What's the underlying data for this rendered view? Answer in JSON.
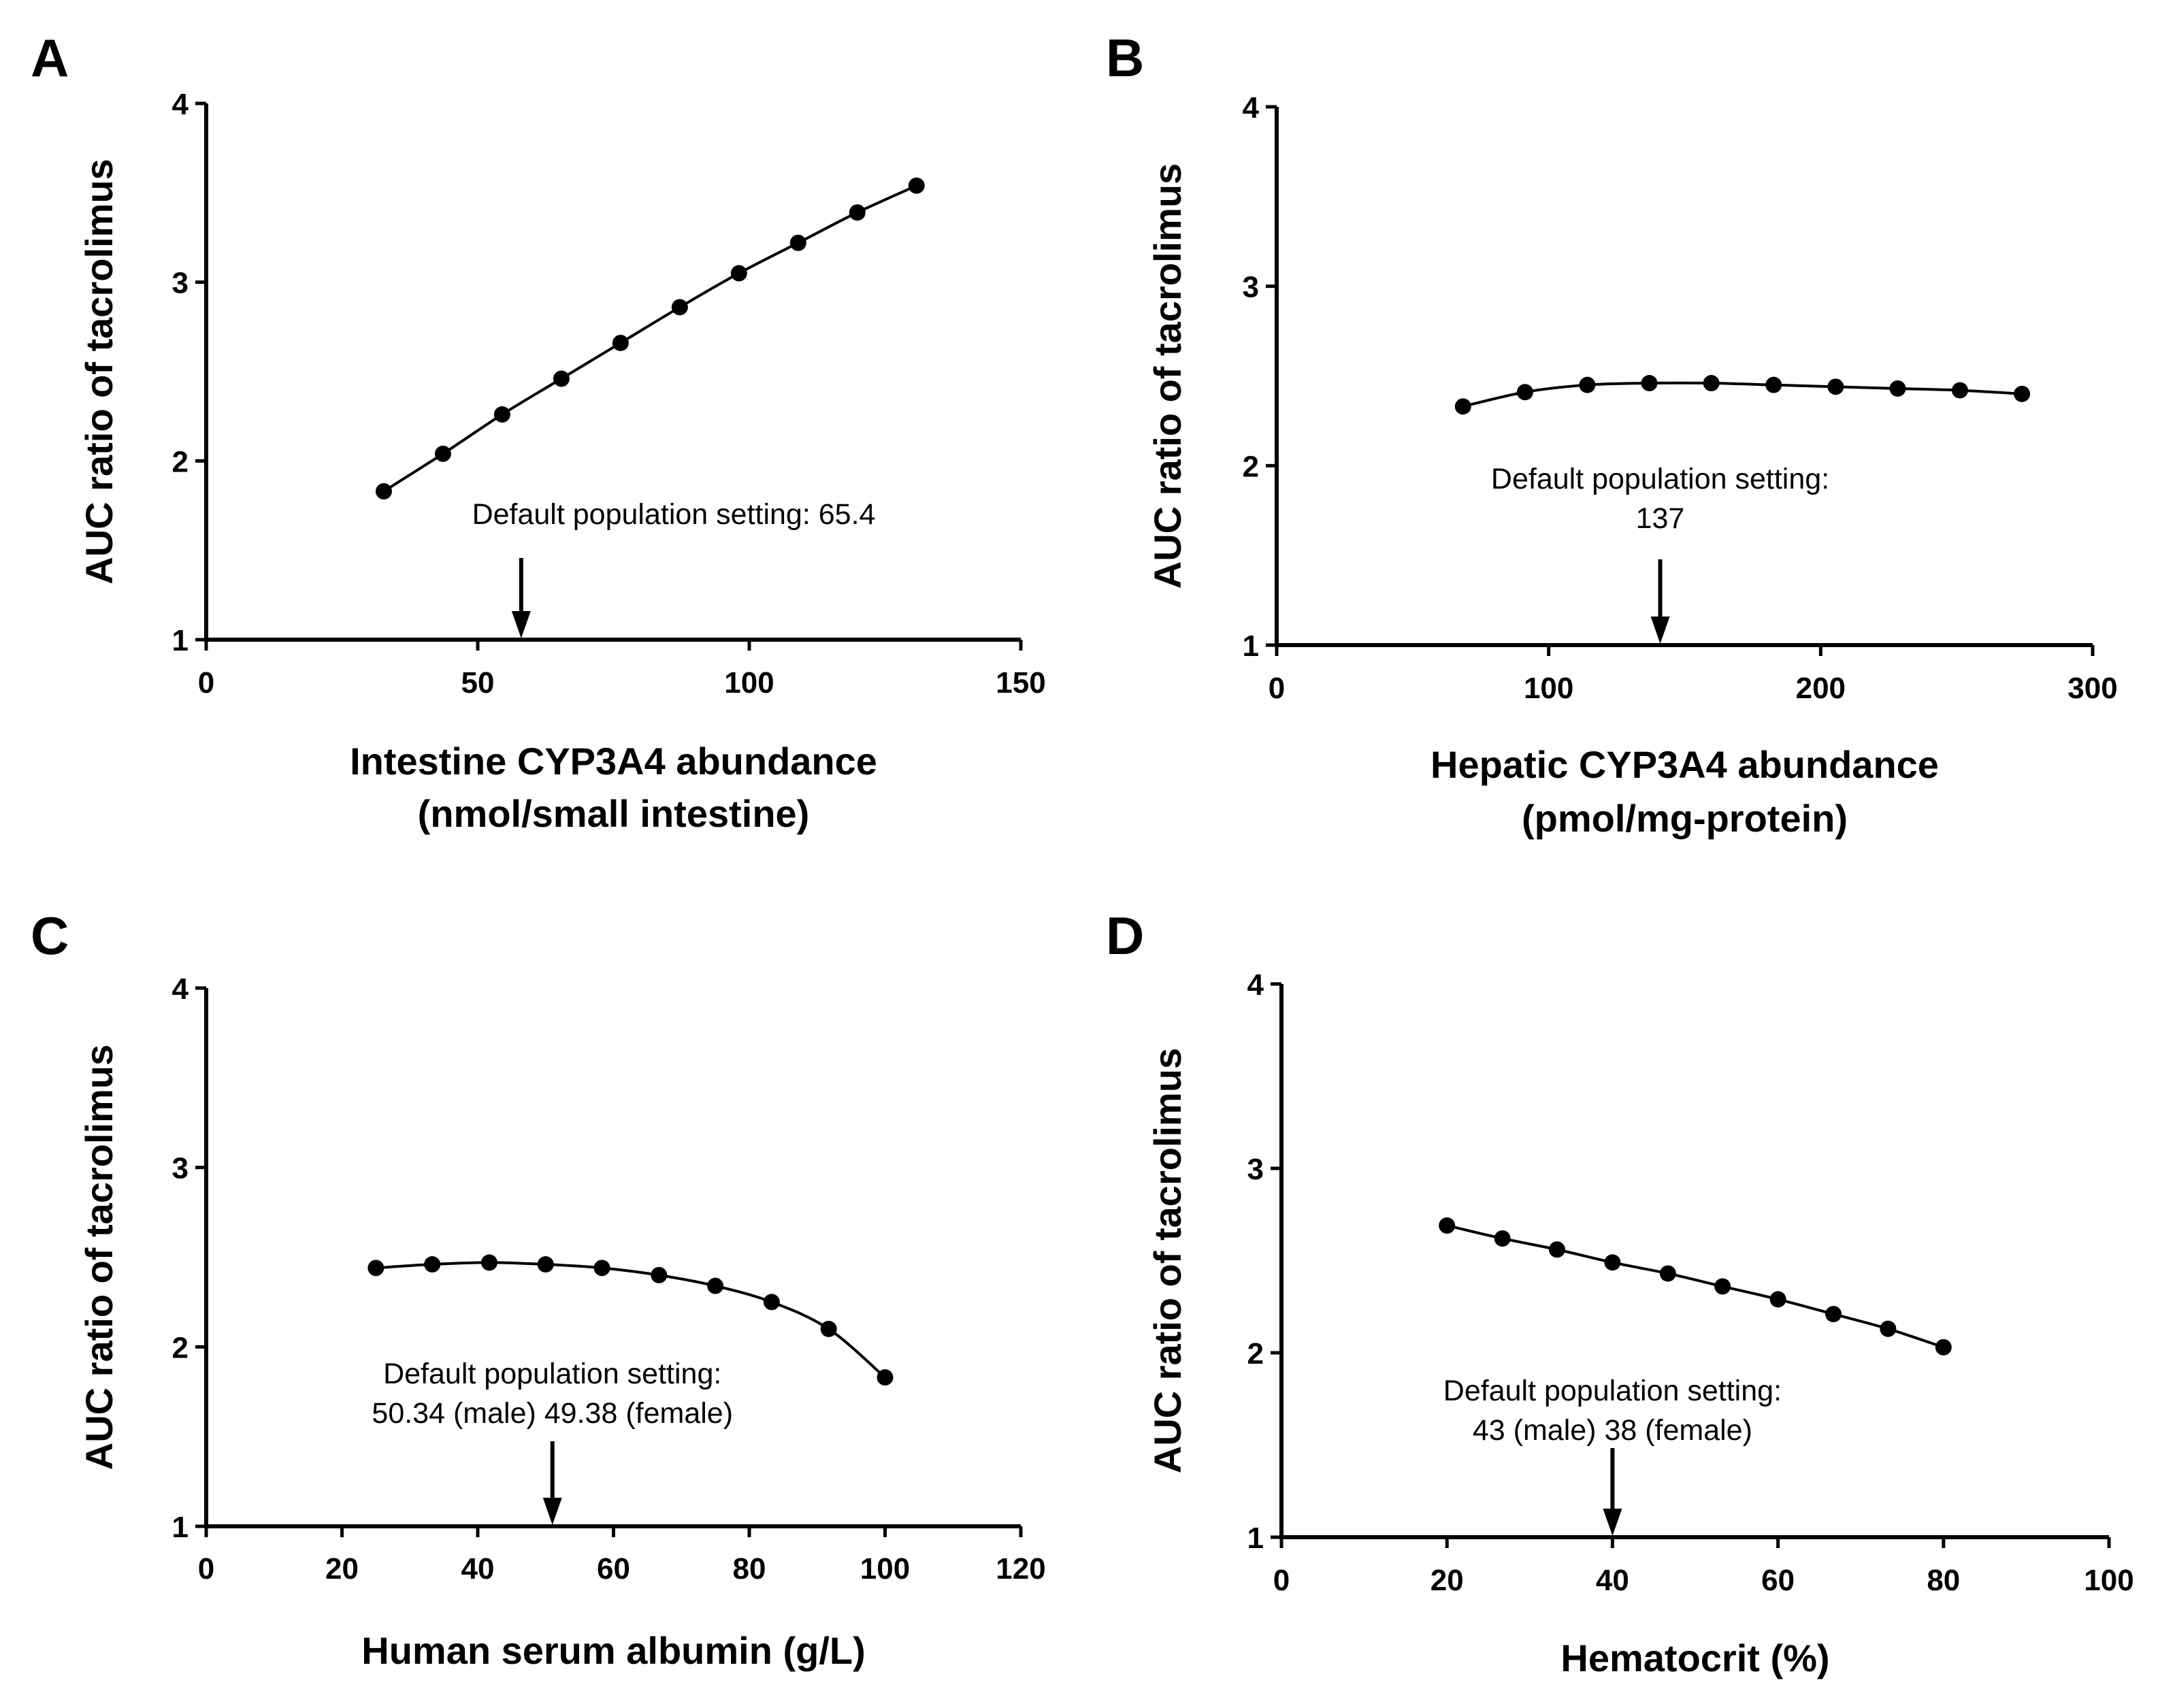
{
  "chart_data": [
    {
      "panel": "A",
      "type": "line",
      "xlabel": [
        "Intestine CYP3A4 abundance",
        "(nmol/small intestine)"
      ],
      "ylabel": "AUC ratio of tacrolimus",
      "xlim": [
        0,
        150
      ],
      "ylim": [
        1,
        4
      ],
      "xticks": [
        0,
        50,
        100,
        150
      ],
      "yticks": [
        1,
        2,
        3,
        4
      ],
      "x": [
        32.7,
        43.6,
        54.5,
        65.4,
        76.3,
        87.2,
        98.1,
        109.0,
        119.9,
        130.8
      ],
      "y": [
        1.83,
        2.04,
        2.26,
        2.46,
        2.66,
        2.86,
        3.05,
        3.22,
        3.39,
        3.54
      ],
      "annotation": {
        "lines": [
          "Default population setting: 65.4"
        ],
        "arrow_x": 58
      }
    },
    {
      "panel": "B",
      "type": "line",
      "xlabel": [
        "Hepatic CYP3A4 abundance",
        "(pmol/mg-protein)"
      ],
      "ylabel": "AUC ratio of tacrolimus",
      "xlim": [
        0,
        300
      ],
      "ylim": [
        1,
        4
      ],
      "xticks": [
        0,
        100,
        200,
        300
      ],
      "yticks": [
        1,
        2,
        3,
        4
      ],
      "x": [
        68.5,
        91.3,
        114.2,
        137.0,
        159.8,
        182.7,
        205.5,
        228.3,
        251.2,
        274.0
      ],
      "y": [
        2.33,
        2.41,
        2.45,
        2.46,
        2.46,
        2.45,
        2.44,
        2.43,
        2.42,
        2.4
      ],
      "annotation": {
        "lines": [
          "Default population setting:",
          "137"
        ],
        "arrow_x": 141
      }
    },
    {
      "panel": "C",
      "type": "line",
      "xlabel": [
        "Human serum albumin (g/L)"
      ],
      "ylabel": "AUC ratio of tacrolimus",
      "xlim": [
        0,
        120
      ],
      "ylim": [
        1,
        4
      ],
      "xticks": [
        0,
        20,
        40,
        60,
        80,
        100,
        120
      ],
      "yticks": [
        1,
        2,
        3,
        4
      ],
      "x": [
        25,
        33.3,
        41.7,
        50,
        58.3,
        66.7,
        75,
        83.3,
        91.7,
        100
      ],
      "y": [
        2.44,
        2.46,
        2.47,
        2.46,
        2.44,
        2.4,
        2.34,
        2.25,
        2.1,
        1.83
      ],
      "annotation": {
        "lines": [
          "Default population setting:",
          "50.34 (male) 49.38 (female)"
        ],
        "arrow_x": 51
      }
    },
    {
      "panel": "D",
      "type": "line",
      "xlabel": [
        "Hematocrit (%)"
      ],
      "ylabel": "AUC ratio of tacrolimus",
      "xlim": [
        0,
        100
      ],
      "ylim": [
        1,
        4
      ],
      "xticks": [
        0,
        20,
        40,
        60,
        80,
        100
      ],
      "yticks": [
        1,
        2,
        3,
        4
      ],
      "x": [
        20,
        26.7,
        33.3,
        40,
        46.7,
        53.3,
        60,
        66.7,
        73.3,
        80
      ],
      "y": [
        2.69,
        2.62,
        2.56,
        2.49,
        2.43,
        2.36,
        2.29,
        2.21,
        2.13,
        2.03
      ],
      "annotation": {
        "lines": [
          "Default population setting:",
          "43 (male) 38 (female)"
        ],
        "arrow_x": 40
      }
    }
  ]
}
